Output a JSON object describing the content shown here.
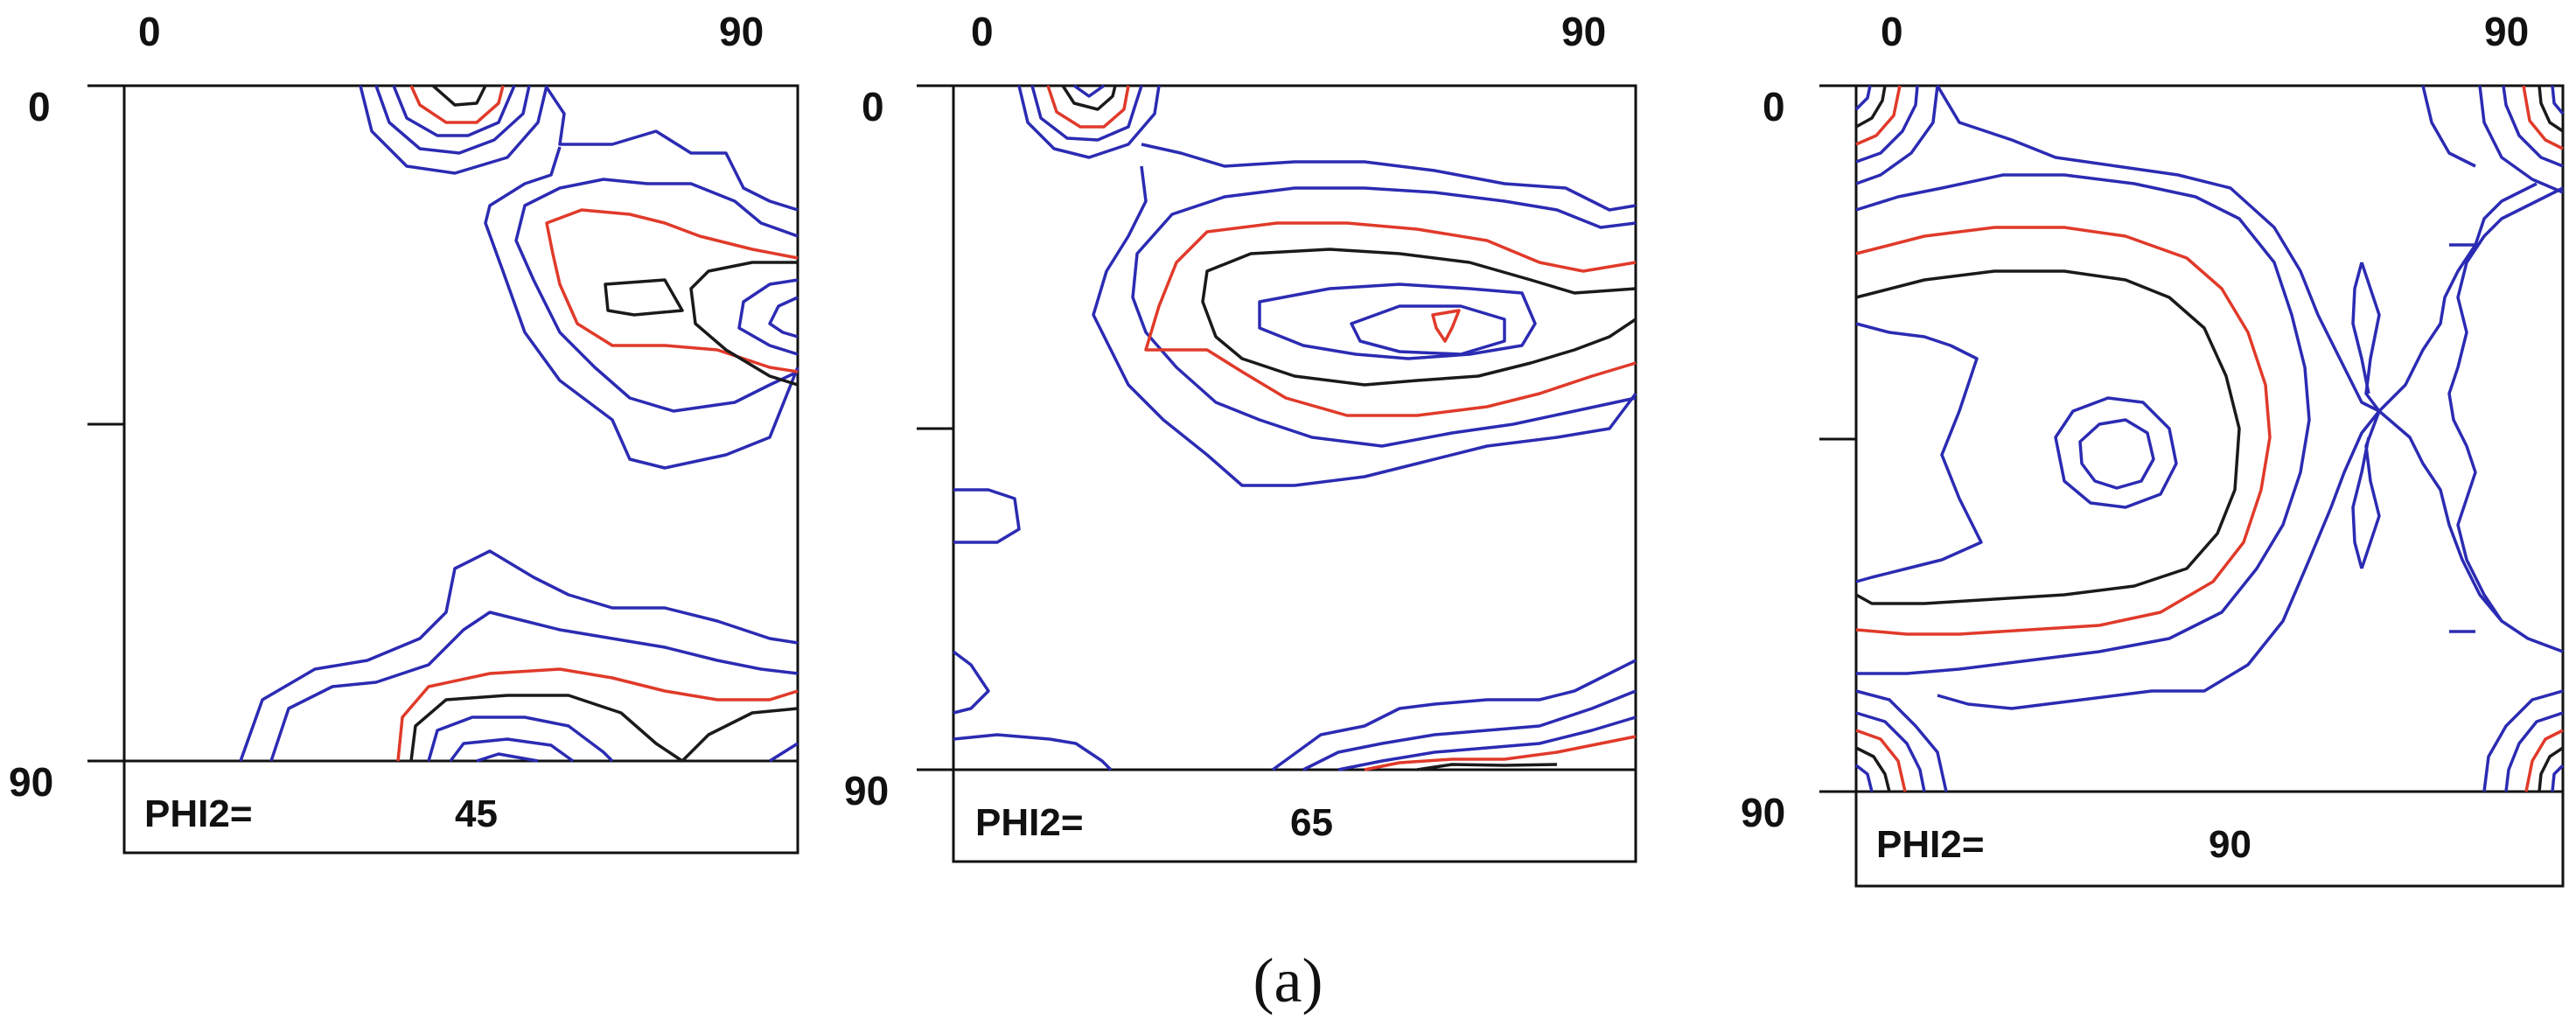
{
  "figure": {
    "caption": "(a)",
    "panels": [
      {
        "id": "phi2-45",
        "x_tick_start": "0",
        "x_tick_end": "90",
        "y_tick_start": "0",
        "y_tick_end": "90",
        "phi2_label": "PHI2=",
        "phi2_value": "45"
      },
      {
        "id": "phi2-65",
        "x_tick_start": "0",
        "x_tick_end": "90",
        "y_tick_start": "0",
        "y_tick_end": "90",
        "phi2_label": "PHI2=",
        "phi2_value": "65"
      },
      {
        "id": "phi2-90",
        "x_tick_start": "0",
        "x_tick_end": "90",
        "y_tick_start": "0",
        "y_tick_end": "90",
        "phi2_label": "PHI2=",
        "phi2_value": "90"
      }
    ],
    "contour_colors": {
      "outer_levels": "#2b2bb3",
      "middle_level": "#e03a2a",
      "inner_level": "#1a1a1a"
    }
  }
}
